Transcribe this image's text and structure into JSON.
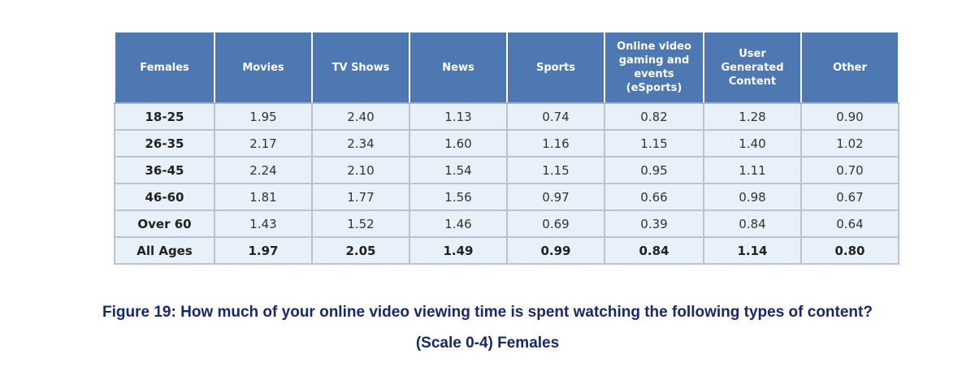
{
  "table": {
    "header": [
      "Females",
      "Movies",
      "TV Shows",
      "News",
      "Sports",
      "Online video gaming and events (eSports)",
      "User Generated Content",
      "Other"
    ],
    "rows": [
      [
        "18-25",
        "1.95",
        "2.40",
        "1.13",
        "0.74",
        "0.82",
        "1.28",
        "0.90"
      ],
      [
        "26-35",
        "2.17",
        "2.34",
        "1.60",
        "1.16",
        "1.15",
        "1.40",
        "1.02"
      ],
      [
        "36-45",
        "2.24",
        "2.10",
        "1.54",
        "1.15",
        "0.95",
        "1.11",
        "0.70"
      ],
      [
        "46-60",
        "1.81",
        "1.77",
        "1.56",
        "0.97",
        "0.66",
        "0.98",
        "0.67"
      ],
      [
        "Over 60",
        "1.43",
        "1.52",
        "1.46",
        "0.69",
        "0.39",
        "0.84",
        "0.64"
      ],
      [
        "All Ages",
        "1.97",
        "2.05",
        "1.49",
        "0.99",
        "0.84",
        "1.14",
        "0.80"
      ]
    ]
  },
  "caption": [
    "Figure 19: How much of your online video viewing time is spent watching the following types of content?",
    "(Scale 0-4) Females"
  ]
}
